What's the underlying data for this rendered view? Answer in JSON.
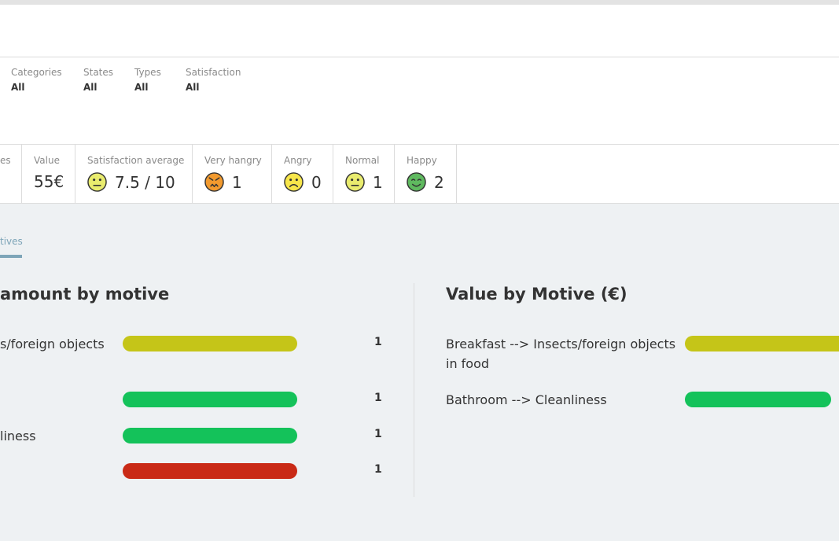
{
  "filters": [
    {
      "label": "Categories",
      "value": "All"
    },
    {
      "label": "States",
      "value": "All"
    },
    {
      "label": "Types",
      "value": "All"
    },
    {
      "label": "Satisfaction",
      "value": "All"
    }
  ],
  "stats": {
    "partial_label": "es",
    "value_label": "Value",
    "value": "55€",
    "satisfaction_label": "Satisfaction average",
    "satisfaction_value": "7.5 / 10",
    "very_hangry_label": "Very hangry",
    "very_hangry_value": "1",
    "angry_label": "Angry",
    "angry_value": "0",
    "normal_label": "Normal",
    "normal_value": "1",
    "happy_label": "Happy",
    "happy_value": "2"
  },
  "tab": {
    "label": "tives"
  },
  "left_chart": {
    "title": "amount by motive",
    "rows": [
      {
        "label": "s/foreign objects",
        "count": "1",
        "color": "#c5c518",
        "fraction": 1.0
      },
      {
        "label": "",
        "count": "1",
        "color": "#14c25a",
        "fraction": 1.0
      },
      {
        "label": "liness",
        "count": "1",
        "color": "#14c25a",
        "fraction": 1.0
      },
      {
        "label": "",
        "count": "1",
        "color": "#c92a16",
        "fraction": 1.0
      }
    ]
  },
  "right_chart": {
    "title": "Value by Motive (€)",
    "rows": [
      {
        "label": "Breakfast --> Insects/foreign objects in food",
        "color": "#c5c518"
      },
      {
        "label": "Bathroom --> Cleanliness",
        "color": "#14c25a"
      }
    ]
  },
  "colors": {
    "accent": "#7ea5b8",
    "face_yellow": "#e9ec6e",
    "face_orange": "#f29a2e",
    "face_angry_yellow": "#f7e64a",
    "face_green": "#5fb95f"
  }
}
